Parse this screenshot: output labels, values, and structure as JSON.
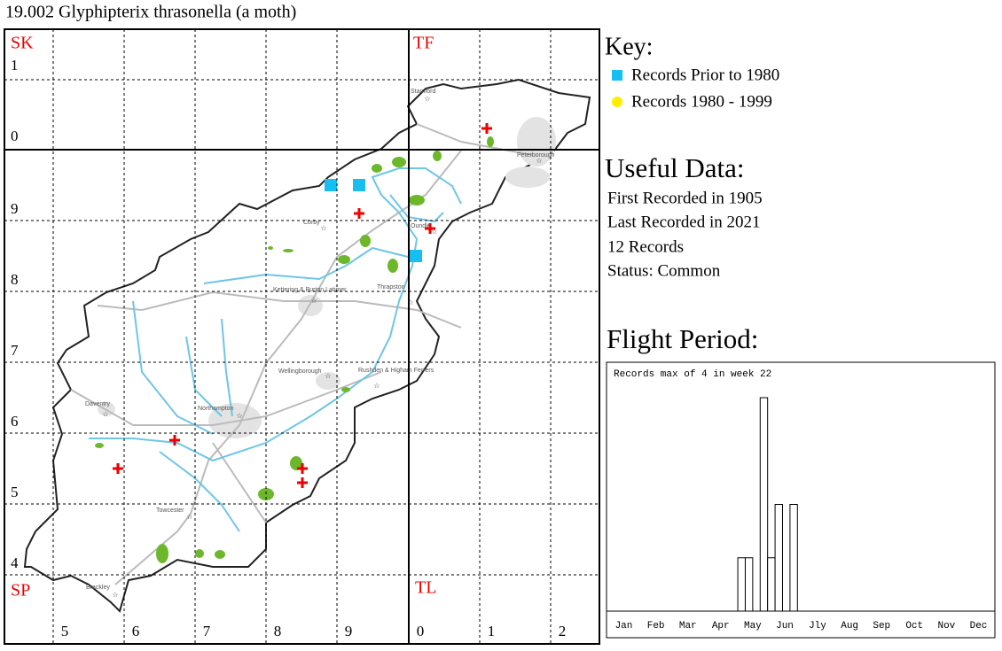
{
  "title": "19.002 Glyphipterix thrasonella (a moth)",
  "map": {
    "grid_squares": [
      "SK",
      "TF",
      "SP",
      "TL"
    ],
    "row_labels": [
      "1",
      "0",
      "9",
      "8",
      "7",
      "6",
      "5",
      "4"
    ],
    "column_labels": [
      "5",
      "6",
      "7",
      "8",
      "9",
      "0",
      "1",
      "2"
    ],
    "towns": [
      "Stamford",
      "Peterborough",
      "Corby",
      "Oundle",
      "Kettering & Burton Latimer",
      "Thrapston",
      "Wellingborough",
      "Rushden & Higham Ferrers",
      "Daventry",
      "Northampton",
      "Towcester",
      "Brackley"
    ]
  },
  "key": {
    "title": "Key:",
    "items": [
      "Records Prior to 1980",
      "Records 1980 - 1999"
    ]
  },
  "useful_data": {
    "title": "Useful Data:",
    "lines": [
      "First Recorded in 1905",
      "Last Recorded in 2021",
      "12 Records",
      "Status: Common"
    ]
  },
  "chart_data": {
    "type": "bar",
    "title": "Flight Period:",
    "annotation": "Records max of 4 in week 22",
    "x": [
      19,
      20,
      22,
      23,
      24,
      26
    ],
    "values": [
      1,
      1,
      4,
      1,
      2,
      2
    ],
    "color": "#ffffff",
    "xlim": [
      1,
      53
    ],
    "ylim": [
      0,
      4
    ],
    "xticks": [
      {
        "value": 3.2,
        "label": "Jan"
      },
      {
        "value": 7.5,
        "label": "Feb"
      },
      {
        "value": 11.8,
        "label": "Mar"
      },
      {
        "value": 16.2,
        "label": "Apr"
      },
      {
        "value": 20.5,
        "label": "May"
      },
      {
        "value": 24.8,
        "label": "Jun"
      },
      {
        "value": 29.2,
        "label": "Jly"
      },
      {
        "value": 33.5,
        "label": "Aug"
      },
      {
        "value": 37.8,
        "label": "Sep"
      },
      {
        "value": 42.2,
        "label": "Oct"
      },
      {
        "value": 46.5,
        "label": "Nov"
      },
      {
        "value": 50.8,
        "label": "Dec"
      }
    ]
  }
}
